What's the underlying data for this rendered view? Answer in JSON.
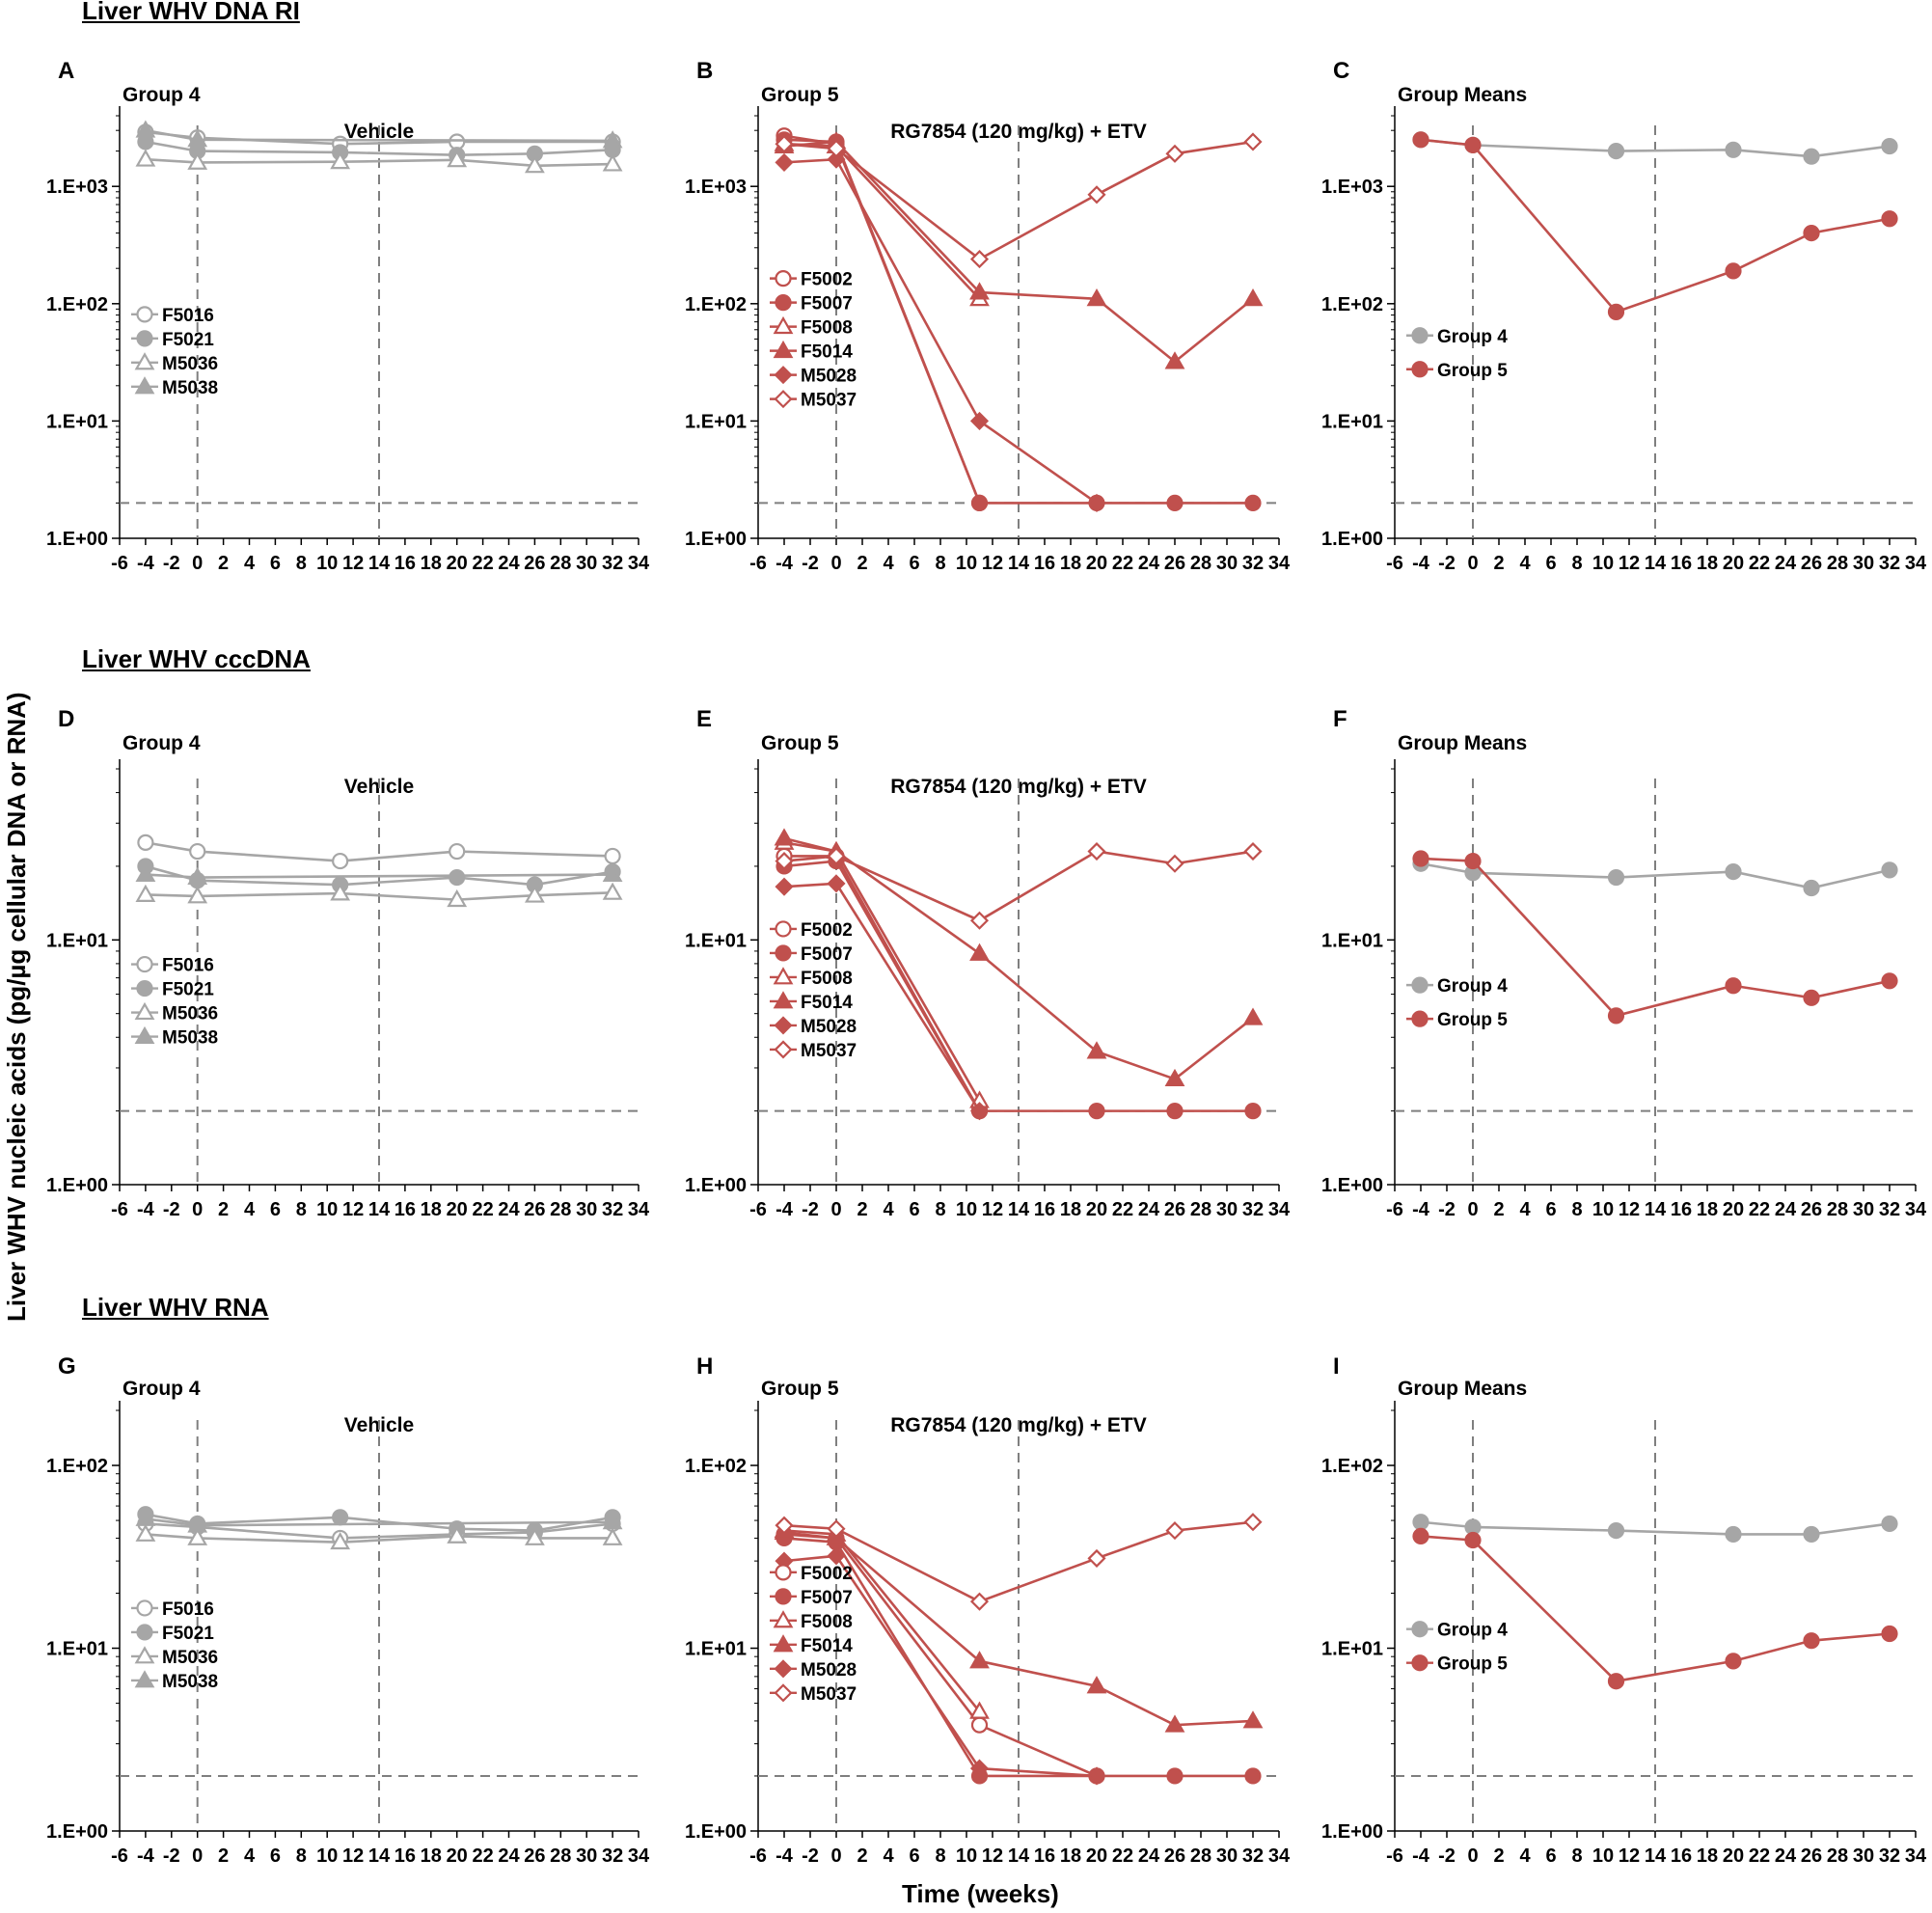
{
  "figure": {
    "y_axis_label": "Liver WHV nucleic acids (pg/µg cellular DNA or RNA)",
    "x_axis_label": "Time (weeks)",
    "sections": [
      "Liver WHV DNA RI",
      "Liver WHV cccDNA",
      "Liver WHV RNA"
    ]
  },
  "colors": {
    "group4": "#a6a6a6",
    "group5": "#c0504d",
    "guide": "#7f7f7f"
  },
  "x_ticks": [
    -6,
    -4,
    -2,
    0,
    2,
    4,
    6,
    8,
    10,
    12,
    14,
    16,
    18,
    20,
    22,
    24,
    26,
    28,
    30,
    32,
    34
  ],
  "chart_data": [
    {
      "type": "line",
      "panel": "A",
      "title": "Group 4",
      "annotation": "Vehicle",
      "xlim": [
        -6,
        34
      ],
      "yscale": "log",
      "ylim": [
        1,
        4000
      ],
      "yticks": [
        1,
        10,
        100,
        1000
      ],
      "ytick_labels": [
        "1.E+00",
        "1.E+01",
        "1.E+02",
        "1.E+03"
      ],
      "lloq": 2,
      "vlines": [
        0,
        14
      ],
      "color_key": "group4",
      "legend_pos": "lower-left",
      "series": [
        {
          "name": "F5016",
          "marker": "circle",
          "filled": false,
          "x": [
            -4,
            0,
            11,
            20,
            32
          ],
          "y": [
            2900,
            2600,
            2300,
            2400,
            2400
          ]
        },
        {
          "name": "F5021",
          "marker": "circle",
          "filled": true,
          "x": [
            -4,
            0,
            11,
            20,
            26,
            32
          ],
          "y": [
            2400,
            2000,
            1950,
            1850,
            1900,
            2050
          ]
        },
        {
          "name": "M5036",
          "marker": "triangle",
          "filled": false,
          "x": [
            -4,
            0,
            11,
            20,
            26,
            32
          ],
          "y": [
            1700,
            1600,
            1620,
            1680,
            1500,
            1550
          ]
        },
        {
          "name": "M5038",
          "marker": "triangle",
          "filled": true,
          "x": [
            -4,
            0,
            32
          ],
          "y": [
            3000,
            2500,
            2450
          ]
        }
      ]
    },
    {
      "type": "line",
      "panel": "B",
      "title": "Group 5",
      "annotation": "RG7854 (120 mg/kg) + ETV",
      "xlim": [
        -6,
        34
      ],
      "yscale": "log",
      "ylim": [
        1,
        4000
      ],
      "yticks": [
        1,
        10,
        100,
        1000
      ],
      "ytick_labels": [
        "1.E+00",
        "1.E+01",
        "1.E+02",
        "1.E+03"
      ],
      "lloq": 2,
      "vlines": [
        0,
        14
      ],
      "color_key": "group5",
      "legend_pos": "center-left",
      "series": [
        {
          "name": "F5002",
          "marker": "circle",
          "filled": false,
          "x": [
            -4,
            0,
            11
          ],
          "y": [
            2700,
            2300,
            2
          ]
        },
        {
          "name": "F5007",
          "marker": "circle",
          "filled": true,
          "x": [
            -4,
            0,
            11,
            20,
            26,
            32
          ],
          "y": [
            2500,
            2400,
            2,
            2,
            2,
            2
          ]
        },
        {
          "name": "F5008",
          "marker": "triangle",
          "filled": false,
          "x": [
            -4,
            0,
            11
          ],
          "y": [
            2300,
            2200,
            110
          ]
        },
        {
          "name": "F5014",
          "marker": "triangle",
          "filled": true,
          "x": [
            -4,
            0,
            11,
            20,
            26,
            32
          ],
          "y": [
            2200,
            2400,
            125,
            110,
            32,
            110
          ]
        },
        {
          "name": "M5028",
          "marker": "diamond",
          "filled": true,
          "x": [
            -4,
            0,
            11,
            20
          ],
          "y": [
            1600,
            1700,
            10,
            2
          ]
        },
        {
          "name": "M5037",
          "marker": "diamond",
          "filled": false,
          "x": [
            -4,
            0,
            11,
            20,
            26,
            32
          ],
          "y": [
            2300,
            2100,
            240,
            850,
            1900,
            2400
          ]
        }
      ]
    },
    {
      "type": "line",
      "panel": "C",
      "title": "Group Means",
      "xlim": [
        -6,
        34
      ],
      "yscale": "log",
      "ylim": [
        1,
        4000
      ],
      "yticks": [
        1,
        10,
        100,
        1000
      ],
      "ytick_labels": [
        "1.E+00",
        "1.E+01",
        "1.E+02",
        "1.E+03"
      ],
      "lloq": 2,
      "vlines": [
        0,
        14
      ],
      "legend_pos": "center-left",
      "series": [
        {
          "name": "Group 4",
          "marker": "circle",
          "filled": true,
          "color_key": "group4",
          "x": [
            -4,
            0,
            11,
            20,
            26,
            32
          ],
          "y": [
            2500,
            2250,
            2000,
            2050,
            1800,
            2200
          ]
        },
        {
          "name": "Group 5",
          "marker": "circle",
          "filled": true,
          "color_key": "group5",
          "x": [
            -4,
            0,
            11,
            20,
            26,
            32
          ],
          "y": [
            2500,
            2250,
            85,
            190,
            400,
            530
          ]
        }
      ]
    },
    {
      "type": "line",
      "panel": "D",
      "title": "Group 4",
      "annotation": "Vehicle",
      "xlim": [
        -6,
        34
      ],
      "yscale": "log",
      "ylim": [
        1,
        50
      ],
      "yticks": [
        1,
        10
      ],
      "ytick_labels": [
        "1.E+00",
        "1.E+01"
      ],
      "lloq": 2,
      "vlines": [
        0,
        14
      ],
      "color_key": "group4",
      "legend_pos": "center-left",
      "series": [
        {
          "name": "F5016",
          "marker": "circle",
          "filled": false,
          "x": [
            -4,
            0,
            11,
            20,
            32
          ],
          "y": [
            25,
            23,
            21,
            23,
            22
          ]
        },
        {
          "name": "F5021",
          "marker": "circle",
          "filled": true,
          "x": [
            -4,
            0,
            11,
            20,
            26,
            32
          ],
          "y": [
            20,
            17.5,
            16.8,
            18,
            16.8,
            19
          ]
        },
        {
          "name": "M5036",
          "marker": "triangle",
          "filled": false,
          "x": [
            -4,
            0,
            11,
            20,
            26,
            32
          ],
          "y": [
            15.3,
            15.1,
            15.5,
            14.6,
            15.2,
            15.6
          ]
        },
        {
          "name": "M5038",
          "marker": "triangle",
          "filled": true,
          "x": [
            -4,
            0,
            32
          ],
          "y": [
            18.5,
            18,
            18.5
          ]
        }
      ]
    },
    {
      "type": "line",
      "panel": "E",
      "title": "Group 5",
      "annotation": "RG7854 (120 mg/kg) + ETV",
      "xlim": [
        -6,
        34
      ],
      "yscale": "log",
      "ylim": [
        1,
        50
      ],
      "yticks": [
        1,
        10
      ],
      "ytick_labels": [
        "1.E+00",
        "1.E+01"
      ],
      "lloq": 2,
      "vlines": [
        0,
        14
      ],
      "color_key": "group5",
      "legend_pos": "center-left",
      "series": [
        {
          "name": "F5002",
          "marker": "circle",
          "filled": false,
          "x": [
            -4,
            0,
            11
          ],
          "y": [
            22,
            22,
            2
          ]
        },
        {
          "name": "F5007",
          "marker": "circle",
          "filled": true,
          "x": [
            -4,
            0,
            11,
            20,
            26,
            32
          ],
          "y": [
            20,
            21,
            2,
            2,
            2,
            2
          ]
        },
        {
          "name": "F5008",
          "marker": "triangle",
          "filled": false,
          "x": [
            -4,
            0,
            11
          ],
          "y": [
            25,
            23,
            2.2
          ]
        },
        {
          "name": "F5014",
          "marker": "triangle",
          "filled": true,
          "x": [
            -4,
            0,
            11,
            20,
            26,
            32
          ],
          "y": [
            26,
            23,
            8.8,
            3.5,
            2.7,
            4.8
          ]
        },
        {
          "name": "M5028",
          "marker": "diamond",
          "filled": true,
          "x": [
            -4,
            0,
            11
          ],
          "y": [
            16.5,
            17,
            2
          ]
        },
        {
          "name": "M5037",
          "marker": "diamond",
          "filled": false,
          "x": [
            -4,
            0,
            11,
            20,
            26,
            32
          ],
          "y": [
            21,
            22,
            12,
            23,
            20.5,
            23
          ]
        }
      ]
    },
    {
      "type": "line",
      "panel": "F",
      "title": "Group Means",
      "xlim": [
        -6,
        34
      ],
      "yscale": "log",
      "ylim": [
        1,
        50
      ],
      "yticks": [
        1,
        10
      ],
      "ytick_labels": [
        "1.E+00",
        "1.E+01"
      ],
      "lloq": 2,
      "vlines": [
        0,
        14
      ],
      "legend_pos": "center-left",
      "series": [
        {
          "name": "Group 4",
          "marker": "circle",
          "filled": true,
          "color_key": "group4",
          "x": [
            -4,
            0,
            11,
            20,
            26,
            32
          ],
          "y": [
            20.5,
            18.8,
            18,
            19,
            16.3,
            19.3
          ]
        },
        {
          "name": "Group 5",
          "marker": "circle",
          "filled": true,
          "color_key": "group5",
          "x": [
            -4,
            0,
            11,
            20,
            26,
            32
          ],
          "y": [
            21.5,
            21,
            4.9,
            6.5,
            5.8,
            6.8
          ]
        }
      ]
    },
    {
      "type": "line",
      "panel": "G",
      "title": "Group 4",
      "annotation": "Vehicle",
      "xlim": [
        -6,
        34
      ],
      "yscale": "log",
      "ylim": [
        1,
        200
      ],
      "yticks": [
        1,
        10,
        100
      ],
      "ytick_labels": [
        "1.E+00",
        "1.E+01",
        "1.E+02"
      ],
      "lloq": 2,
      "vlines": [
        0,
        14
      ],
      "color_key": "group4",
      "legend_pos": "center-left",
      "series": [
        {
          "name": "F5016",
          "marker": "circle",
          "filled": false,
          "x": [
            -4,
            0,
            11,
            20,
            26,
            32
          ],
          "y": [
            48,
            46,
            40,
            42,
            43,
            48
          ]
        },
        {
          "name": "F5021",
          "marker": "circle",
          "filled": true,
          "x": [
            -4,
            0,
            11,
            20,
            26,
            32
          ],
          "y": [
            54,
            48,
            52,
            45,
            44,
            52
          ]
        },
        {
          "name": "M5036",
          "marker": "triangle",
          "filled": false,
          "x": [
            -4,
            0,
            11,
            20,
            26,
            32
          ],
          "y": [
            42,
            40,
            38,
            41,
            40,
            40
          ]
        },
        {
          "name": "M5038",
          "marker": "triangle",
          "filled": true,
          "x": [
            -4,
            0,
            32
          ],
          "y": [
            51,
            47,
            49
          ]
        }
      ]
    },
    {
      "type": "line",
      "panel": "H",
      "title": "Group 5",
      "annotation": "RG7854 (120 mg/kg) + ETV",
      "xlim": [
        -6,
        34
      ],
      "yscale": "log",
      "ylim": [
        1,
        200
      ],
      "yticks": [
        1,
        10,
        100
      ],
      "ytick_labels": [
        "1.E+00",
        "1.E+01",
        "1.E+02"
      ],
      "lloq": 2,
      "vlines": [
        0,
        14
      ],
      "color_key": "group5",
      "legend_pos": "center-left",
      "series": [
        {
          "name": "F5002",
          "marker": "circle",
          "filled": false,
          "x": [
            -4,
            0,
            11,
            20
          ],
          "y": [
            42,
            40,
            3.8,
            2
          ]
        },
        {
          "name": "F5007",
          "marker": "circle",
          "filled": true,
          "x": [
            -4,
            0,
            11,
            20,
            26,
            32
          ],
          "y": [
            40,
            38,
            2,
            2,
            2,
            2
          ]
        },
        {
          "name": "F5008",
          "marker": "triangle",
          "filled": false,
          "x": [
            -4,
            0,
            11
          ],
          "y": [
            44,
            42,
            4.5
          ]
        },
        {
          "name": "F5014",
          "marker": "triangle",
          "filled": true,
          "x": [
            -4,
            0,
            11,
            20,
            26,
            32
          ],
          "y": [
            43,
            40,
            8.5,
            6.2,
            3.8,
            4
          ]
        },
        {
          "name": "M5028",
          "marker": "diamond",
          "filled": true,
          "x": [
            -4,
            0,
            11,
            20
          ],
          "y": [
            30,
            32,
            2.2,
            2
          ]
        },
        {
          "name": "M5037",
          "marker": "diamond",
          "filled": false,
          "x": [
            -4,
            0,
            11,
            20,
            26,
            32
          ],
          "y": [
            47,
            45,
            18,
            31,
            44,
            49
          ]
        }
      ]
    },
    {
      "type": "line",
      "panel": "I",
      "title": "Group Means",
      "xlim": [
        -6,
        34
      ],
      "yscale": "log",
      "ylim": [
        1,
        200
      ],
      "yticks": [
        1,
        10,
        100
      ],
      "ytick_labels": [
        "1.E+00",
        "1.E+01",
        "1.E+02"
      ],
      "lloq": 2,
      "vlines": [
        0,
        14
      ],
      "legend_pos": "center-left",
      "series": [
        {
          "name": "Group 4",
          "marker": "circle",
          "filled": true,
          "color_key": "group4",
          "x": [
            -4,
            0,
            11,
            20,
            26,
            32
          ],
          "y": [
            49,
            46,
            44,
            42,
            42,
            48
          ]
        },
        {
          "name": "Group 5",
          "marker": "circle",
          "filled": true,
          "color_key": "group5",
          "x": [
            -4,
            0,
            11,
            20,
            26,
            32
          ],
          "y": [
            41,
            39,
            6.6,
            8.5,
            11,
            12
          ]
        }
      ]
    }
  ]
}
